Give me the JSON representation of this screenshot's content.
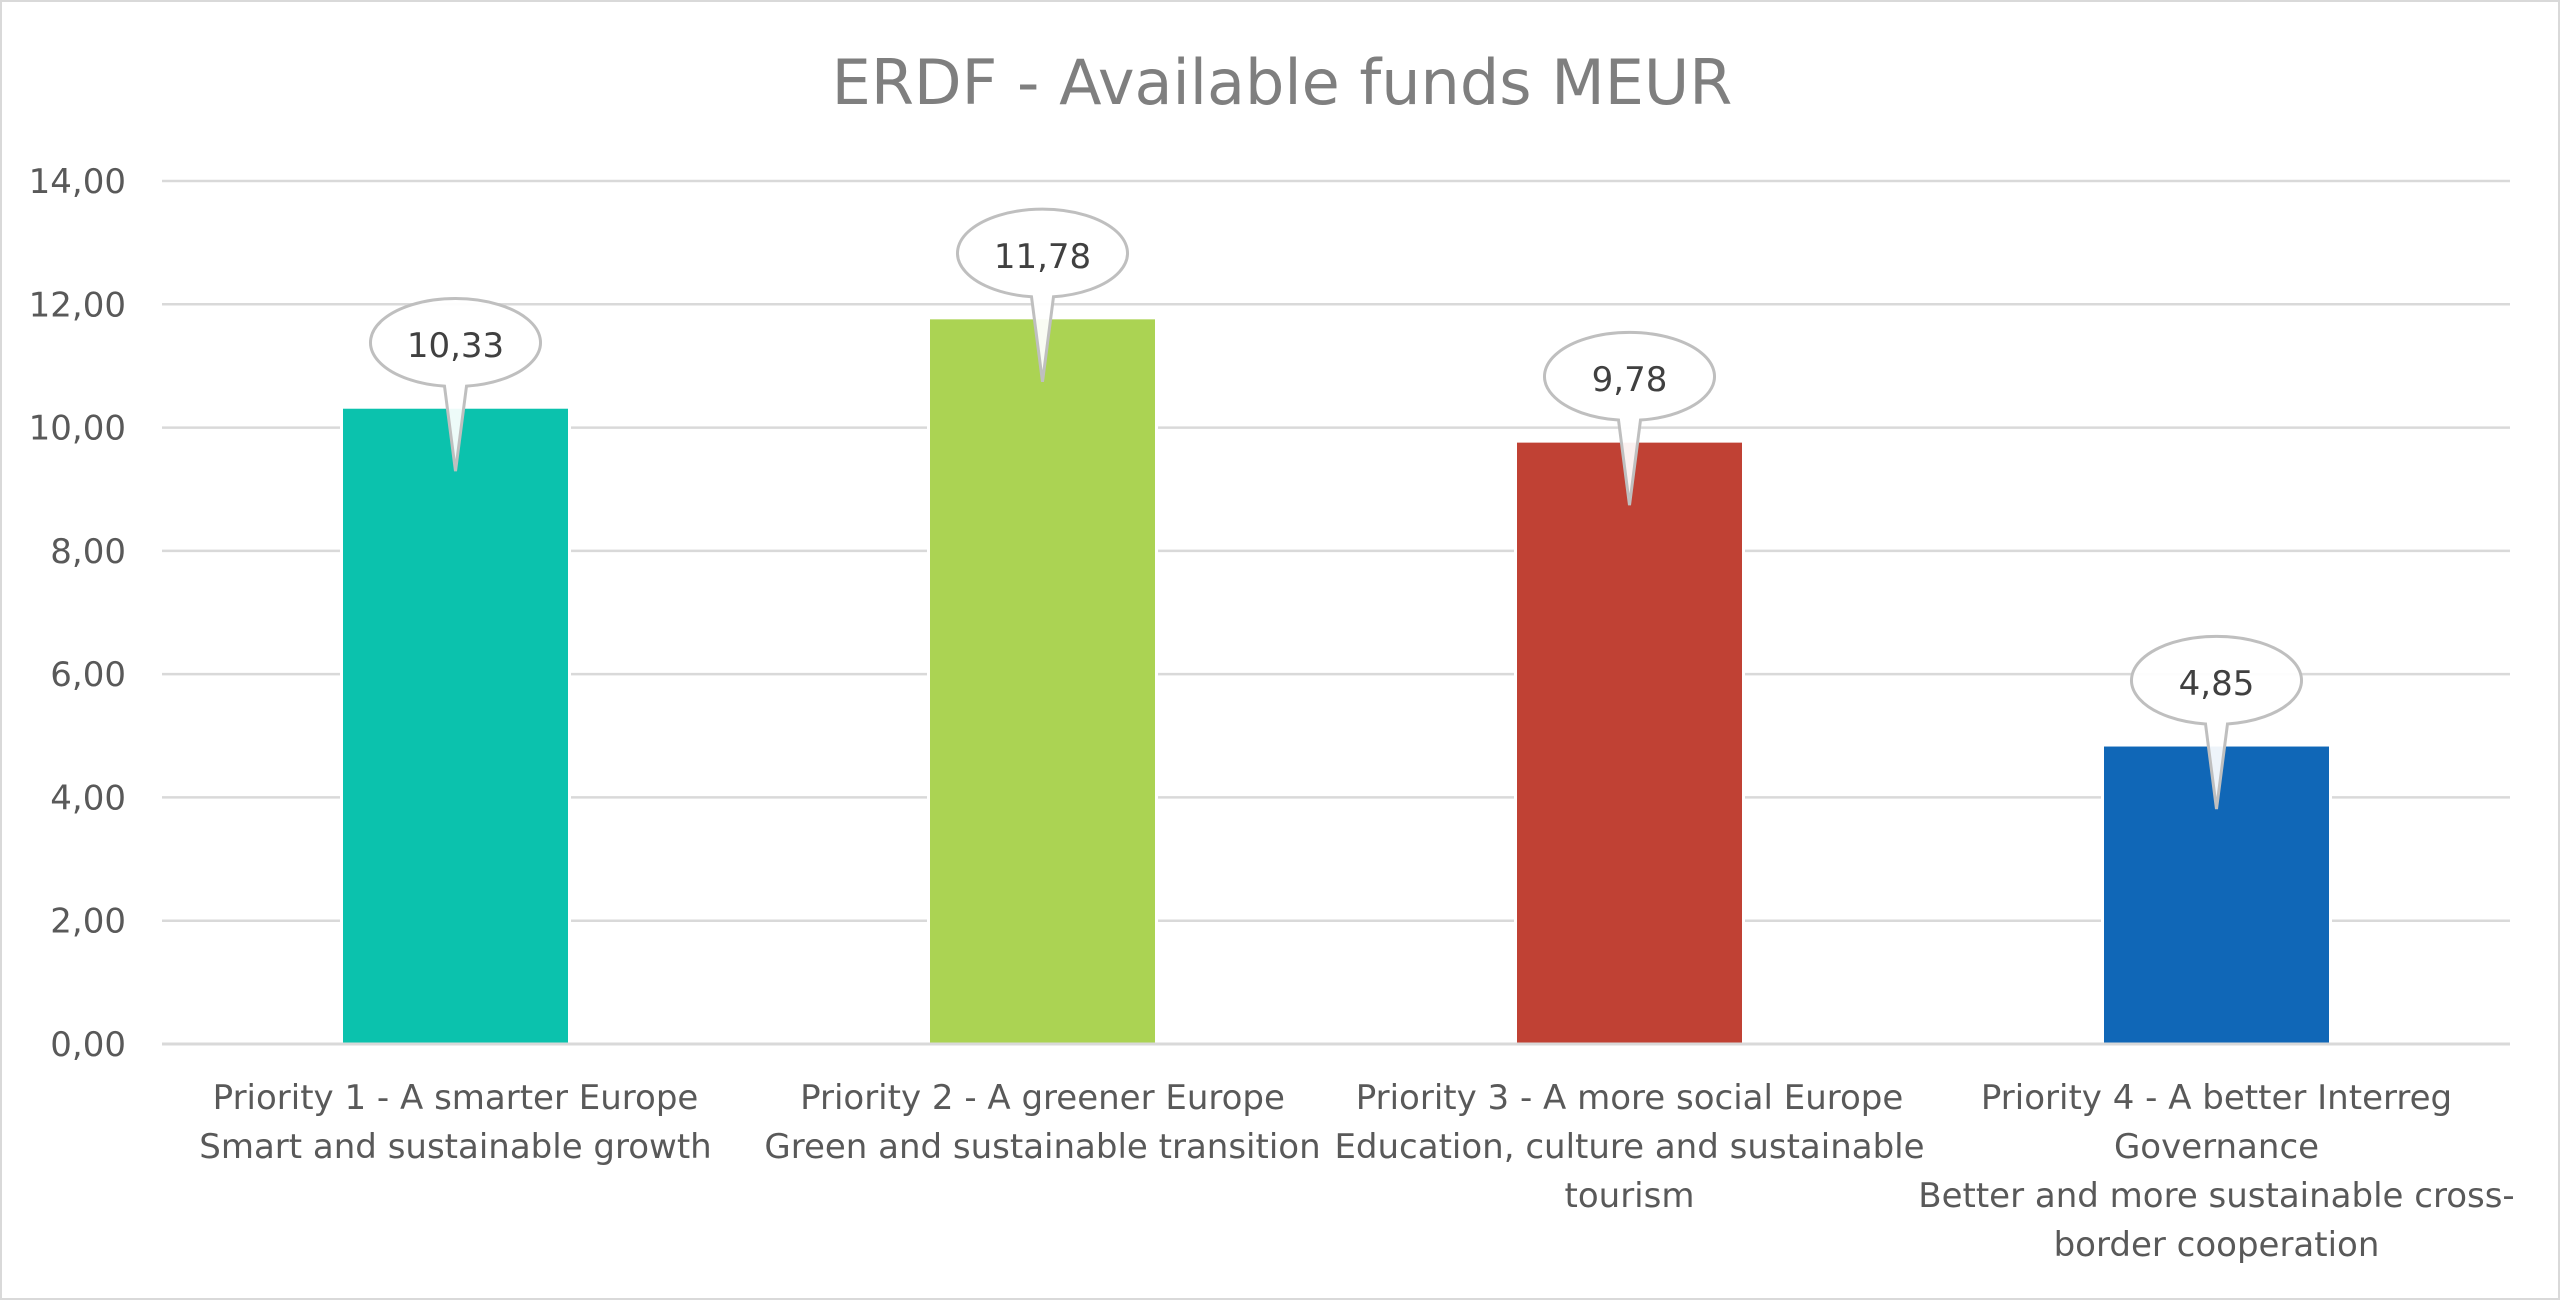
{
  "chart_data": {
    "type": "bar",
    "title": "ERDF - Available funds MEUR",
    "xlabel": "",
    "ylabel": "",
    "ylim": [
      0,
      14
    ],
    "ytick_step": 2,
    "ytick_labels": [
      "0,00",
      "2,00",
      "4,00",
      "6,00",
      "8,00",
      "10,00",
      "12,00",
      "14,00"
    ],
    "grid": true,
    "legend": "none",
    "categories": [
      [
        "Priority 1 - A smarter Europe",
        "Smart and sustainable growth"
      ],
      [
        "Priority 2 - A greener Europe",
        "Green and sustainable transition"
      ],
      [
        "Priority 3 - A more social Europe",
        "Education, culture and sustainable",
        "tourism"
      ],
      [
        "Priority 4 - A better Interreg",
        "Governance",
        "Better and more sustainable cross-",
        "border cooperation"
      ]
    ],
    "values": [
      10.33,
      11.78,
      9.78,
      4.85
    ],
    "data_labels": [
      "10,33",
      "11,78",
      "9,78",
      "4,85"
    ],
    "colors": [
      "#0bc2ad",
      "#abd353",
      "#c04134",
      "#1067b7"
    ],
    "gridline_color": "#d9d9d9",
    "callout_border_color": "#bfbfbf"
  }
}
